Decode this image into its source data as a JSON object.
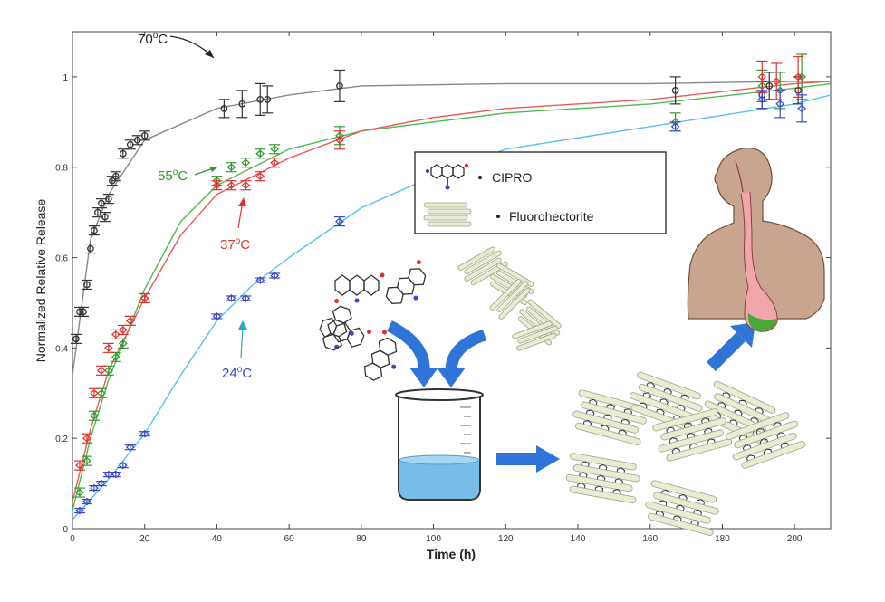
{
  "chart_data": {
    "type": "scatter",
    "title": "",
    "xlabel": "Time (h)",
    "ylabel": "Normalized Relative Release",
    "xlim": [
      0,
      210
    ],
    "ylim": [
      0,
      1.1
    ],
    "x_ticks": [
      0,
      20,
      40,
      60,
      80,
      100,
      120,
      140,
      160,
      180,
      200
    ],
    "y_ticks": [
      0,
      0.2,
      0.4,
      0.6,
      0.8,
      1
    ],
    "x_tick_labels": [
      "0",
      "20",
      "40",
      "60",
      "80",
      "100",
      "120",
      "140",
      "160",
      "180",
      "200"
    ],
    "y_tick_labels": [
      "0",
      "0.2",
      "0.4",
      "0.6",
      "0.8",
      "1"
    ],
    "grid": false,
    "series": [
      {
        "name": "70°C",
        "color": "#333333",
        "fit_color": "#8a8a8a",
        "marker": "circle",
        "x": [
          1,
          2,
          3,
          4,
          5,
          6,
          7,
          8,
          9,
          10,
          11,
          12,
          14,
          16,
          18,
          20,
          42,
          47,
          52,
          54,
          74,
          167,
          191,
          193,
          201
        ],
        "y": [
          0.42,
          0.48,
          0.48,
          0.54,
          0.62,
          0.66,
          0.7,
          0.72,
          0.69,
          0.73,
          0.77,
          0.78,
          0.83,
          0.85,
          0.86,
          0.87,
          0.93,
          0.94,
          0.95,
          0.95,
          0.98,
          0.97,
          0.96,
          0.98,
          0.97
        ],
        "err": [
          0.01,
          0.01,
          0.01,
          0.01,
          0.01,
          0.01,
          0.01,
          0.01,
          0.01,
          0.01,
          0.01,
          0.01,
          0.01,
          0.01,
          0.01,
          0.01,
          0.02,
          0.03,
          0.035,
          0.03,
          0.035,
          0.03,
          0.03,
          0.03,
          0.03
        ]
      },
      {
        "name": "55°C",
        "color": "#2e9a2e",
        "fit_color": "#4cbc4c",
        "marker": "diamond",
        "x": [
          2,
          4,
          6,
          8,
          10,
          12,
          14,
          16,
          20,
          40,
          44,
          48,
          52,
          56,
          74,
          167,
          191,
          196,
          202
        ],
        "y": [
          0.08,
          0.15,
          0.25,
          0.3,
          0.35,
          0.38,
          0.41,
          0.46,
          0.51,
          0.77,
          0.8,
          0.81,
          0.83,
          0.84,
          0.87,
          0.9,
          0.98,
          0.97,
          1.0
        ],
        "err": [
          0.01,
          0.01,
          0.01,
          0.01,
          0.01,
          0.01,
          0.01,
          0.01,
          0.01,
          0.01,
          0.01,
          0.01,
          0.01,
          0.01,
          0.02,
          0.02,
          0.035,
          0.04,
          0.05
        ]
      },
      {
        "name": "37°C",
        "color": "#e23030",
        "fit_color": "#ea5a5a",
        "marker": "diamond",
        "x": [
          2,
          4,
          6,
          8,
          10,
          12,
          14,
          16,
          20,
          40,
          44,
          48,
          52,
          56,
          74,
          191,
          195,
          201
        ],
        "y": [
          0.14,
          0.2,
          0.3,
          0.35,
          0.4,
          0.43,
          0.44,
          0.46,
          0.51,
          0.76,
          0.76,
          0.76,
          0.78,
          0.81,
          0.86,
          1.0,
          0.99,
          1.0
        ],
        "err": [
          0.01,
          0.01,
          0.01,
          0.01,
          0.01,
          0.01,
          0.01,
          0.01,
          0.01,
          0.01,
          0.01,
          0.01,
          0.01,
          0.01,
          0.02,
          0.035,
          0.04,
          0.045
        ]
      },
      {
        "name": "24°C",
        "color": "#3a48c8",
        "fit_color": "#56c2f0",
        "marker": "diamond",
        "x": [
          2,
          4,
          6,
          8,
          10,
          12,
          14,
          16,
          20,
          40,
          44,
          48,
          52,
          56,
          74,
          167,
          191,
          196,
          202
        ],
        "y": [
          0.04,
          0.06,
          0.09,
          0.1,
          0.12,
          0.12,
          0.14,
          0.18,
          0.21,
          0.47,
          0.51,
          0.51,
          0.55,
          0.56,
          0.68,
          0.89,
          0.95,
          0.94,
          0.93
        ],
        "err": [
          0.005,
          0.005,
          0.005,
          0.005,
          0.005,
          0.005,
          0.005,
          0.005,
          0.005,
          0.005,
          0.005,
          0.005,
          0.005,
          0.005,
          0.01,
          0.01,
          0.02,
          0.03,
          0.03
        ]
      }
    ],
    "fits": [
      {
        "name": "70°C",
        "x": [
          0,
          5,
          10,
          20,
          40,
          60,
          80,
          120,
          160,
          200,
          210
        ],
        "y": [
          0.34,
          0.64,
          0.74,
          0.86,
          0.93,
          0.96,
          0.98,
          0.985,
          0.985,
          0.99,
          0.99
        ]
      },
      {
        "name": "55°C",
        "x": [
          0,
          5,
          10,
          20,
          30,
          40,
          50,
          60,
          80,
          100,
          120,
          160,
          200,
          210
        ],
        "y": [
          0.04,
          0.2,
          0.33,
          0.53,
          0.68,
          0.76,
          0.8,
          0.84,
          0.88,
          0.9,
          0.92,
          0.94,
          0.975,
          0.985
        ]
      },
      {
        "name": "37°C",
        "x": [
          0,
          5,
          10,
          20,
          30,
          40,
          50,
          60,
          80,
          100,
          120,
          160,
          200,
          210
        ],
        "y": [
          0.06,
          0.22,
          0.35,
          0.51,
          0.65,
          0.74,
          0.78,
          0.82,
          0.88,
          0.91,
          0.93,
          0.95,
          0.985,
          0.99
        ]
      },
      {
        "name": "24°C",
        "x": [
          0,
          10,
          20,
          30,
          40,
          50,
          60,
          80,
          100,
          120,
          160,
          200,
          210
        ],
        "y": [
          0.02,
          0.11,
          0.21,
          0.34,
          0.46,
          0.54,
          0.6,
          0.71,
          0.78,
          0.84,
          0.89,
          0.94,
          0.96
        ]
      }
    ],
    "annotations": [
      {
        "text": "70°C",
        "label_key": "70",
        "color": "#222222"
      },
      {
        "text": "55°C",
        "label_key": "55",
        "color": "#2e9a2e"
      },
      {
        "text": "37°C",
        "label_key": "37",
        "color": "#e23030"
      },
      {
        "text": "24°C",
        "label_key": "24",
        "color": "#3a48c8"
      }
    ],
    "legend": {
      "placement": "center",
      "items": [
        {
          "label": "CIPRO",
          "icon": "cipro-molecule-icon"
        },
        {
          "label": "Fluorohectorite",
          "icon": "clay-platelets-icon"
        }
      ]
    }
  },
  "colors": {
    "arrow": "#2f74d8",
    "clay": "#e8ecd2",
    "clay_stroke": "#9aa48a",
    "water": "#78bde8",
    "body": "#c9a48e",
    "stomach": "#f1a6ac",
    "stomach_content": "#4aa83a"
  }
}
